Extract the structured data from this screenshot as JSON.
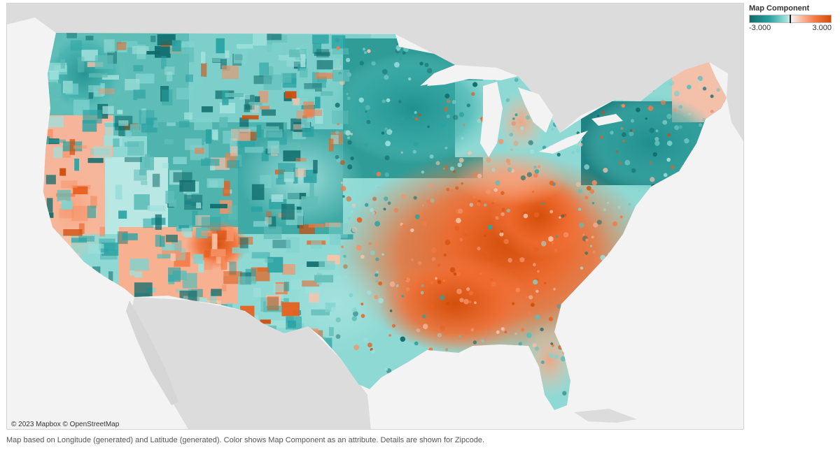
{
  "map": {
    "attribution": "© 2023 Mapbox © OpenStreetMap",
    "colors": {
      "ocean": "#f3f3f3",
      "land_background": "#dcdcdc",
      "water_lake": "#f3f3f3",
      "negative_extreme": "#0e6b6b",
      "negative_mid": "#2aa3a3",
      "negative_light": "#9fe0dc",
      "neutral": "#f2f2f2",
      "positive_light": "#f9c3aa",
      "positive_mid": "#f47a45",
      "positive_extreme": "#d24c08"
    }
  },
  "legend": {
    "title": "Map Component",
    "min_label": "-3.000",
    "max_label": "3.000",
    "min_value": -3,
    "max_value": 3
  },
  "footnote": "Map based on Longitude (generated) and Latitude (generated).  Color shows Map Component as an attribute.  Details are shown for Zipcode."
}
